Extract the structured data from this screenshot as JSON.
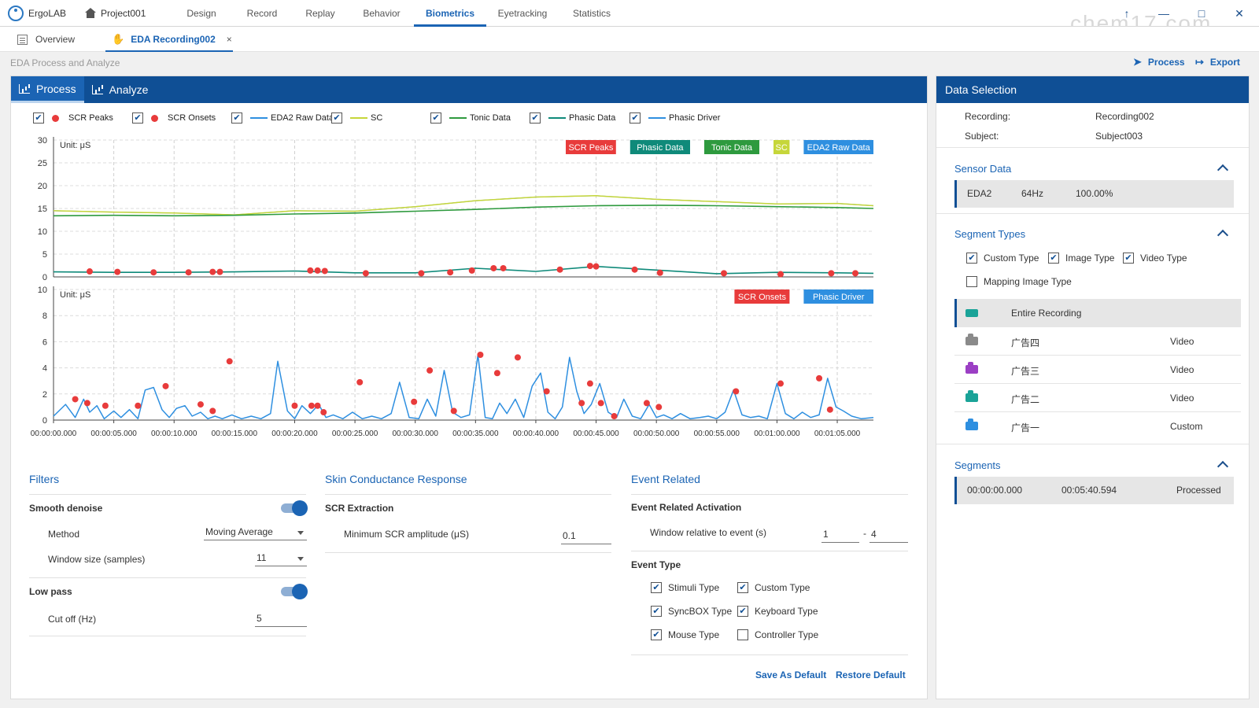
{
  "app": {
    "name": "ErgoLAB",
    "project": "Project001"
  },
  "nav": {
    "tabs": [
      "Design",
      "Record",
      "Replay",
      "Behavior",
      "Biometrics",
      "Eyetracking",
      "Statistics"
    ],
    "active": "Biometrics"
  },
  "window_controls": {
    "pin": "↑",
    "minimize": "—",
    "maximize": "□",
    "close": "✕"
  },
  "watermark": "chem17.com",
  "subtabs": {
    "overview": "Overview",
    "recording": "EDA Recording002",
    "close": "×"
  },
  "breadcrumb": "EDA Process and Analyze",
  "actions": {
    "process": "Process",
    "export": "Export"
  },
  "panel_tabs": {
    "process": "Process",
    "analyze": "Analyze"
  },
  "legend": {
    "items": [
      {
        "label": "SCR Peaks",
        "kind": "dot",
        "color": "#e83b3b"
      },
      {
        "label": "SCR Onsets",
        "kind": "dot",
        "color": "#e83b3b"
      },
      {
        "label": "EDA2 Raw Data",
        "kind": "line",
        "color": "#2e8fe0"
      },
      {
        "label": "SC",
        "kind": "line",
        "color": "#c6d63a"
      },
      {
        "label": "Tonic Data",
        "kind": "line",
        "color": "#2e9a3e"
      },
      {
        "label": "Phasic Data",
        "kind": "line",
        "color": "#0f8a7a"
      },
      {
        "label": "Phasic Driver",
        "kind": "line",
        "color": "#2e8fe0"
      }
    ]
  },
  "chart_data": [
    {
      "type": "line",
      "unit": "Unit: μS",
      "ylim": [
        0,
        30
      ],
      "yticks": [
        "30",
        "25",
        "20",
        "15",
        "10",
        "5",
        "0"
      ],
      "tags": [
        {
          "label": "SCR Peaks",
          "color": "#e83b3b"
        },
        {
          "label": "Phasic Data",
          "color": "#0f8a7a"
        },
        {
          "label": "Tonic Data",
          "color": "#2e9a3e"
        },
        {
          "label": "SC",
          "color": "#c6d63a"
        },
        {
          "label": "EDA2 Raw Data",
          "color": "#2e8fe0"
        }
      ],
      "x_seconds": [
        0,
        5,
        10,
        15,
        20,
        25,
        30,
        35,
        40,
        45,
        50,
        55,
        60,
        65,
        68
      ],
      "sc": [
        14.5,
        14.2,
        14.0,
        13.6,
        14.5,
        14.4,
        15.4,
        16.7,
        17.5,
        17.8,
        17.0,
        16.5,
        16.0,
        16.1,
        15.6
      ],
      "tonic": [
        13.4,
        13.5,
        13.4,
        13.5,
        13.8,
        14.0,
        14.4,
        14.8,
        15.3,
        15.6,
        15.7,
        15.6,
        15.4,
        15.2,
        15.0
      ],
      "phasic": [
        1.1,
        1.0,
        1.0,
        1.1,
        1.3,
        0.9,
        0.9,
        1.9,
        1.2,
        2.3,
        1.5,
        0.7,
        1.0,
        0.9,
        0.8
      ],
      "peaks_x": [
        3,
        5.3,
        8.3,
        11.2,
        13.2,
        13.8,
        21.3,
        21.9,
        22.5,
        25.9,
        30.5,
        32.9,
        34.7,
        36.5,
        37.3,
        42.0,
        44.5,
        45.0,
        48.2,
        50.3,
        55.6,
        60.3,
        64.5,
        66.5
      ],
      "peaks_y": [
        1.2,
        1.1,
        1.0,
        1.0,
        1.1,
        1.1,
        1.4,
        1.4,
        1.3,
        0.8,
        0.8,
        1.0,
        1.4,
        1.9,
        1.9,
        1.6,
        2.4,
        2.3,
        1.6,
        0.9,
        0.8,
        0.6,
        0.8,
        0.8
      ]
    },
    {
      "type": "line",
      "unit": "Unit: μS",
      "ylim": [
        0,
        10
      ],
      "yticks": [
        "10",
        "8",
        "6",
        "4",
        "2",
        "0"
      ],
      "tags": [
        {
          "label": "SCR Onsets",
          "color": "#e83b3b"
        },
        {
          "label": "Phasic Driver",
          "color": "#2e8fe0"
        }
      ],
      "x_ticks": [
        "00:00:00.000",
        "00:00:05.000",
        "00:00:10.000",
        "00:00:15.000",
        "00:00:20.000",
        "00:00:25.000",
        "00:00:30.000",
        "00:00:35.000",
        "00:00:40.000",
        "00:00:45.000",
        "00:00:50.000",
        "00:00:55.000",
        "00:01:00.000",
        "00:01:05.000"
      ],
      "x_seconds": [
        0,
        1,
        1.8,
        2.5,
        3.0,
        3.6,
        4.2,
        5.0,
        5.6,
        6.3,
        7.0,
        7.6,
        8.3,
        9.0,
        9.6,
        10.2,
        10.9,
        11.5,
        12.2,
        12.8,
        13.4,
        14.0,
        14.8,
        15.6,
        16.4,
        17.2,
        18.0,
        18.6,
        19.4,
        20.0,
        20.6,
        21.3,
        22.0,
        22.6,
        23.2,
        24.0,
        24.8,
        25.6,
        26.4,
        27.2,
        28.0,
        28.7,
        29.5,
        30.3,
        31.0,
        31.7,
        32.4,
        33.1,
        33.8,
        34.5,
        35.2,
        35.8,
        36.4,
        37.0,
        37.6,
        38.3,
        39.0,
        39.7,
        40.4,
        41.0,
        41.6,
        42.2,
        42.8,
        43.4,
        44.0,
        44.6,
        45.3,
        46.0,
        46.7,
        47.3,
        48.0,
        48.7,
        49.4,
        50.0,
        50.6,
        51.3,
        52.0,
        52.8,
        53.6,
        54.3,
        55.0,
        55.7,
        56.4,
        57.1,
        57.8,
        58.5,
        59.2,
        60.0,
        60.7,
        61.4,
        62.1,
        62.8,
        63.5,
        64.2,
        64.9,
        65.5,
        66.2,
        67.0,
        68.0
      ],
      "driver": [
        0.3,
        1.2,
        0.2,
        1.6,
        0.6,
        1.1,
        0.1,
        0.7,
        0.2,
        0.8,
        0.1,
        2.3,
        2.5,
        0.8,
        0.2,
        0.9,
        1.1,
        0.3,
        0.6,
        0.1,
        0.3,
        0.1,
        0.4,
        0.1,
        0.3,
        0.1,
        0.5,
        4.5,
        0.7,
        0.1,
        1.1,
        0.5,
        1.2,
        0.2,
        0.4,
        0.1,
        0.6,
        0.1,
        0.3,
        0.1,
        0.5,
        2.9,
        0.2,
        0.1,
        1.6,
        0.3,
        3.8,
        0.6,
        0.2,
        0.4,
        5.0,
        0.2,
        0.1,
        1.3,
        0.5,
        1.6,
        0.2,
        2.6,
        3.6,
        0.6,
        0.1,
        1.0,
        4.8,
        2.2,
        0.5,
        1.2,
        2.8,
        0.6,
        0.2,
        1.6,
        0.3,
        0.1,
        1.2,
        0.2,
        0.4,
        0.1,
        0.5,
        0.1,
        0.2,
        0.3,
        0.1,
        0.6,
        2.3,
        0.4,
        0.2,
        0.3,
        0.1,
        2.8,
        0.5,
        0.1,
        0.6,
        0.2,
        0.4,
        3.2,
        1.0,
        0.7,
        0.3,
        0.1,
        0.2
      ],
      "onsets_x": [
        1.8,
        2.8,
        4.3,
        7.0,
        9.3,
        12.2,
        13.2,
        14.6,
        20.0,
        21.4,
        21.9,
        22.4,
        25.4,
        29.9,
        31.2,
        33.2,
        35.4,
        36.8,
        38.5,
        40.9,
        43.8,
        44.5,
        45.4,
        46.5,
        49.2,
        50.2,
        56.6,
        60.3,
        63.5,
        64.4
      ],
      "onsets_y": [
        1.6,
        1.3,
        1.1,
        1.1,
        2.6,
        1.2,
        0.7,
        4.5,
        1.1,
        1.1,
        1.1,
        0.6,
        2.9,
        1.4,
        3.8,
        0.7,
        5.0,
        3.6,
        4.8,
        2.2,
        1.3,
        2.8,
        1.3,
        0.3,
        1.3,
        1.0,
        2.2,
        2.8,
        3.2,
        0.8
      ]
    }
  ],
  "filters": {
    "title": "Filters",
    "smooth_label": "Smooth denoise",
    "method_label": "Method",
    "method_value": "Moving Average",
    "window_label": "Window size (samples)",
    "window_value": "11",
    "lowpass_label": "Low pass",
    "cutoff_label": "Cut off (Hz)",
    "cutoff_value": "5"
  },
  "scr": {
    "title": "Skin Conductance Response",
    "extraction_label": "SCR Extraction",
    "min_amp_label": "Minimum SCR amplitude (μS)",
    "min_amp_value": "0.1"
  },
  "event": {
    "title": "Event Related",
    "activation_label": "Event Related Activation",
    "window_label": "Window relative to event (s)",
    "window_from": "1",
    "window_sep": "-",
    "window_to": "4",
    "type_label": "Event Type",
    "types": [
      {
        "label": "Stimuli Type",
        "checked": true
      },
      {
        "label": "Custom Type",
        "checked": true
      },
      {
        "label": "SyncBOX Type",
        "checked": true
      },
      {
        "label": "Keyboard Type",
        "checked": true
      },
      {
        "label": "Mouse Type",
        "checked": true
      },
      {
        "label": "Controller Type",
        "checked": false
      }
    ],
    "save_default": "Save As Default",
    "restore_default": "Restore Default"
  },
  "side": {
    "title": "Data Selection",
    "recording_label": "Recording:",
    "recording_value": "Recording002",
    "subject_label": "Subject:",
    "subject_value": "Subject003",
    "sensor_title": "Sensor Data",
    "sensor": {
      "name": "EDA2",
      "rate": "64Hz",
      "pct": "100.00%"
    },
    "segtypes_title": "Segment Types",
    "segtypes": [
      {
        "label": "Custom Type",
        "checked": true
      },
      {
        "label": "Image Type",
        "checked": true
      },
      {
        "label": "Video Type",
        "checked": true
      },
      {
        "label": "Mapping Image Type",
        "checked": false
      }
    ],
    "segs": [
      {
        "name": "Entire Recording",
        "type": "",
        "color": "#1aa398"
      },
      {
        "name": "广告四",
        "type": "Video",
        "color": "#8a8a8a"
      },
      {
        "name": "广告三",
        "type": "Video",
        "color": "#9b3fc4"
      },
      {
        "name": "广告二",
        "type": "Video",
        "color": "#1aa398"
      },
      {
        "name": "广告一",
        "type": "Custom",
        "color": "#2e8fe0"
      }
    ],
    "segments_title": "Segments",
    "segment": {
      "start": "00:00:00.000",
      "end": "00:05:40.594",
      "status": "Processed"
    }
  }
}
